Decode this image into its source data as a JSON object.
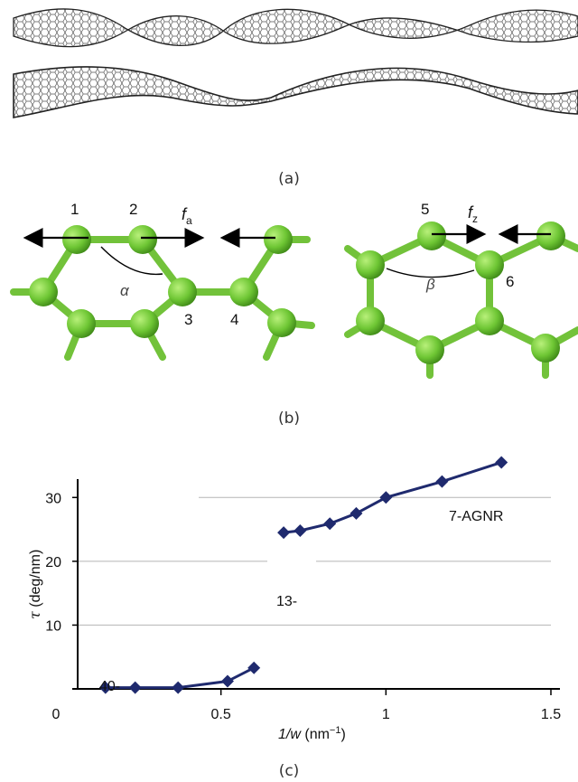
{
  "panel_a": {
    "caption": "(a)"
  },
  "panel_b": {
    "caption": "(b)",
    "atom_labels": [
      "1",
      "2",
      "3",
      "4",
      "5",
      "6"
    ],
    "force_a_base": "f",
    "force_a_sub": "a",
    "force_z_base": "f",
    "force_z_sub": "z",
    "angle_alpha": "α",
    "angle_beta": "β",
    "colors": {
      "atom": "#6ec634",
      "bond": "#72c23a",
      "arrow": "#000000"
    }
  },
  "panel_c": {
    "caption": "(c)"
  },
  "chart_data": {
    "type": "line",
    "xlabel_base": "1/w",
    "xlabel_unit": "(nm",
    "xlabel_exp": "−1",
    "xlabel_close": ")",
    "ylabel_base": "τ",
    "ylabel_unit": "(deg/nm)",
    "xlim": [
      0,
      1.5
    ],
    "ylim": [
      0,
      35
    ],
    "x_ticks": [
      0,
      0.5,
      1,
      1.5
    ],
    "x_tick_labels": [
      "0",
      "0.5",
      "1",
      "1.5"
    ],
    "y_ticks": [
      10,
      20,
      30
    ],
    "y_tick_labels": [
      "10",
      "20",
      "30"
    ],
    "grid": true,
    "color": "#1f2a6e",
    "series": [
      {
        "name": "40-",
        "x": [
          0.15,
          0.24,
          0.37,
          0.52,
          0.6
        ],
        "y": [
          0.2,
          0.2,
          0.2,
          1.2,
          3.3
        ]
      },
      {
        "name": "13-",
        "x": [
          0.69,
          0.74,
          0.83,
          0.91,
          1.0,
          1.17,
          1.35
        ],
        "y": [
          24.5,
          24.8,
          25.9,
          27.5,
          30.0,
          32.5,
          35.5
        ]
      },
      {
        "name": "7-AGNR",
        "x": [],
        "y": []
      }
    ]
  }
}
